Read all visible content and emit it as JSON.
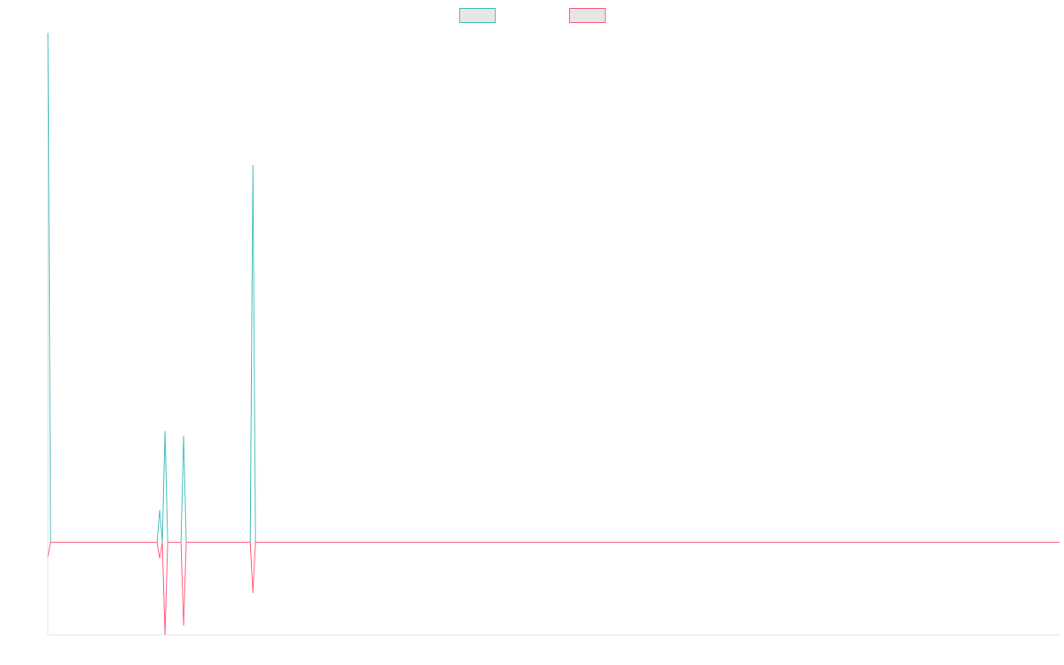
{
  "chart_data": {
    "type": "line",
    "title": "",
    "xlabel": "",
    "ylabel": "",
    "legend": {
      "placement": "top-center"
    },
    "grid": false,
    "x": [
      0,
      1,
      2,
      3,
      4,
      5,
      6,
      7,
      8,
      9,
      10,
      11,
      12,
      13,
      14,
      15,
      16,
      17,
      18,
      19,
      20,
      21,
      22,
      23,
      24,
      25,
      26,
      27,
      28,
      29,
      30,
      31,
      32,
      33,
      34,
      35,
      36,
      37,
      38,
      39,
      40,
      41,
      42,
      43,
      44,
      45,
      46,
      47,
      48,
      49,
      50,
      51,
      52,
      53,
      54,
      55,
      56,
      57,
      58,
      59,
      60,
      61,
      62,
      63,
      64,
      65,
      66,
      67,
      68,
      69,
      70,
      71,
      72,
      73,
      74,
      75,
      76,
      77,
      78,
      79,
      80,
      81,
      82,
      83,
      84,
      85,
      86,
      87,
      88,
      89,
      90,
      91,
      92,
      93,
      94,
      95,
      96,
      97,
      98,
      99,
      100,
      101,
      102,
      103,
      104,
      105,
      106,
      107,
      108,
      109,
      110,
      111,
      112,
      113,
      114,
      115,
      116,
      117,
      118,
      119,
      120,
      121,
      122,
      123,
      124,
      125,
      126,
      127,
      128,
      129,
      130,
      131,
      132,
      133,
      134,
      135,
      136,
      137,
      138,
      139,
      140,
      141,
      142,
      143,
      144,
      145,
      146,
      147,
      148,
      149,
      150,
      151,
      152,
      153,
      154,
      155,
      156,
      157,
      158,
      159,
      160,
      161,
      162,
      163,
      164,
      165,
      166,
      167,
      168,
      169,
      170,
      171,
      172,
      173,
      174,
      175,
      176,
      177,
      178,
      179,
      180,
      181,
      182,
      183,
      184,
      185,
      186,
      187,
      188,
      189,
      190,
      191,
      192,
      193,
      194,
      195,
      196,
      197,
      198,
      199,
      200,
      201,
      202,
      203,
      204,
      205,
      206,
      207,
      208,
      209,
      210,
      211,
      212,
      213,
      214,
      215,
      216,
      217,
      218,
      219,
      220,
      221,
      222,
      223,
      224,
      225,
      226,
      227,
      228,
      229,
      230,
      231,
      232,
      233,
      234,
      235,
      236,
      237,
      238,
      239,
      240,
      241,
      242,
      243,
      244,
      245,
      246,
      247,
      248,
      249,
      250,
      251,
      252,
      253,
      254,
      255,
      256,
      257,
      258,
      259,
      260,
      261,
      262,
      263,
      264,
      265,
      266,
      267,
      268,
      269,
      270,
      271,
      272,
      273,
      274,
      275,
      276,
      277,
      278,
      279,
      280,
      281,
      282,
      283,
      284,
      285,
      286,
      287,
      288,
      289,
      290,
      291,
      292,
      293,
      294,
      295,
      296,
      297,
      298,
      299,
      300,
      301,
      302,
      303,
      304,
      305,
      306,
      307,
      308,
      309,
      310,
      311,
      312,
      313,
      314,
      315,
      316,
      317,
      318,
      319,
      320,
      321,
      322,
      323,
      324,
      325,
      326,
      327,
      328,
      329,
      330,
      331,
      332,
      333,
      334,
      335,
      336,
      337,
      338,
      339,
      340,
      341,
      342,
      343,
      344,
      345,
      346,
      347,
      348,
      349,
      350,
      351,
      352,
      353,
      354,
      355,
      356,
      357,
      358,
      359,
      360,
      361,
      362,
      363,
      364,
      365,
      366,
      367,
      368,
      369,
      370,
      371,
      372,
      373,
      374,
      375,
      376,
      377,
      378,
      379,
      380
    ],
    "xlim": [
      0,
      380
    ],
    "ylim": [
      -2.0,
      11.0
    ],
    "series": [
      {
        "color": "#4bc0c0",
        "points": [
          [
            0,
            11.0
          ],
          [
            1,
            0.0
          ],
          [
            41,
            0.0
          ],
          [
            42,
            0.7
          ],
          [
            43,
            0.0
          ],
          [
            44,
            2.4
          ],
          [
            45,
            0.0
          ],
          [
            50,
            0.0
          ],
          [
            51,
            2.3
          ],
          [
            52,
            0.0
          ],
          [
            76,
            0.0
          ],
          [
            77,
            8.15
          ],
          [
            78,
            0.0
          ],
          [
            380,
            0.0
          ]
        ]
      },
      {
        "color": "#ff6384",
        "points": [
          [
            0,
            -0.3
          ],
          [
            1,
            0.0
          ],
          [
            41,
            0.0
          ],
          [
            42,
            -0.35
          ],
          [
            43,
            0.0
          ],
          [
            44,
            -2.0
          ],
          [
            45,
            0.0
          ],
          [
            50,
            0.0
          ],
          [
            51,
            -1.8
          ],
          [
            52,
            0.0
          ],
          [
            76,
            0.0
          ],
          [
            77,
            -1.1
          ],
          [
            78,
            0.0
          ],
          [
            380,
            0.0
          ]
        ]
      }
    ]
  }
}
